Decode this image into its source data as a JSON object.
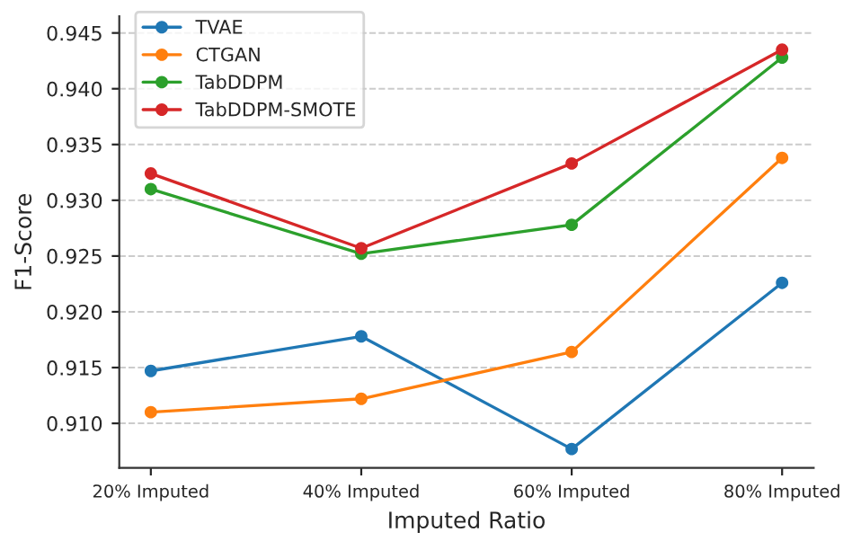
{
  "chart_data": {
    "type": "line",
    "xlabel": "Imputed Ratio",
    "ylabel": "F1-Score",
    "categories": [
      "20% Imputed",
      "40% Imputed",
      "60% Imputed",
      "80% Imputed"
    ],
    "series": [
      {
        "name": "TVAE",
        "color": "#1f77b4",
        "values": [
          0.9147,
          0.9178,
          0.9077,
          0.9226
        ]
      },
      {
        "name": "CTGAN",
        "color": "#ff7f0e",
        "values": [
          0.911,
          0.9122,
          0.9164,
          0.9338
        ]
      },
      {
        "name": "TabDDPM",
        "color": "#2ca02c",
        "values": [
          0.931,
          0.9252,
          0.9278,
          0.9428
        ]
      },
      {
        "name": "TabDDPM-SMOTE",
        "color": "#d62728",
        "values": [
          0.9324,
          0.9257,
          0.9333,
          0.9435
        ]
      }
    ],
    "ylim": [
      0.906,
      0.9465
    ],
    "yticks": [
      {
        "value": 0.91,
        "label": "0.910"
      },
      {
        "value": 0.915,
        "label": "0.915"
      },
      {
        "value": 0.92,
        "label": "0.920"
      },
      {
        "value": 0.925,
        "label": "0.925"
      },
      {
        "value": 0.93,
        "label": "0.930"
      },
      {
        "value": 0.935,
        "label": "0.935"
      },
      {
        "value": 0.94,
        "label": "0.940"
      },
      {
        "value": 0.945,
        "label": "0.945"
      }
    ],
    "grid": "y",
    "legend": "top left",
    "marker": "circle",
    "line_style": "solid"
  }
}
